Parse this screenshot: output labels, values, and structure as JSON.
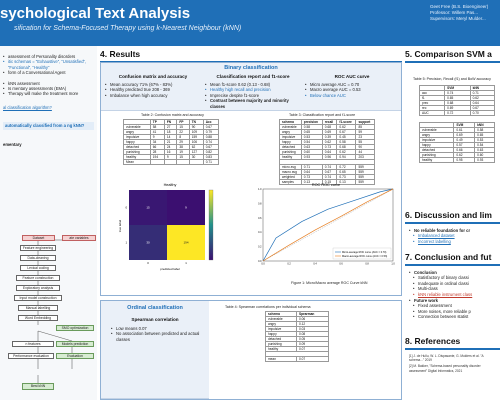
{
  "header": {
    "title": "sychological Text Analysis",
    "subtitle": "sification for Schema-Focused Therapy using k-Nearest Neighbour (kNN)",
    "authors": [
      "Geet Free (B.S. Bioengineer)",
      "Professor: Willem Pas...",
      "Supervisors: Meryl Mulder..."
    ]
  },
  "left": {
    "intro_lines": [
      "assessment of Personality disorders",
      "itic schemas = “Exhaustive”, “Unsatisfied”, “Functional”, “Healthy”",
      "form of a Conversational Agent",
      "kNN assessment",
      "Is mentary assessments (EMA)",
      "Therapy will make the treatment more"
    ],
    "question": "al classification algorithm?",
    "highlight": "automatically classified from a ng kNN?",
    "method_title": "ementary",
    "flow": [
      "Dataset",
      "ate variables",
      "Feature engineering",
      "Data-cleaning",
      "Lexical coding",
      "Feature construction",
      "Exploratory analysis",
      "Input model construction",
      "Manual labelling",
      "Word Embedding",
      "SMO optimization",
      "n features",
      "Models prediction",
      "Performance evaluation",
      "Evaluation",
      "Best kNN"
    ]
  },
  "results": {
    "title": "4. Results",
    "binary": {
      "title": "Binary classification",
      "col1_title": "Confusion matrix and accuracy",
      "col1_items": [
        "Mean accuracy 71% (67% - 83%)",
        "Healthy predicted true 208 - 369",
        "Imbalance when high accuracy"
      ],
      "col2_title": "Classification report and f1-score",
      "col2_items": [
        "Mean f1-score 0.62 (0.13 - 0.68)",
        "Healthy high recall and precision",
        "Imprecise despite f1-score",
        "Contrast between majority and minority classes"
      ],
      "col3_title": "ROC AUC curve",
      "col3_items": [
        "Micro average AUC = 0.70",
        "Macro average AUC = 0.53",
        "Below chance AUC"
      ],
      "table2_caption": "Table 2: Confusion matrix and accuracy",
      "table3_caption": "Table 3: Classification report and f1-score",
      "cm_title": "Healthy",
      "cm_xlabel": "predicted label",
      "cm_ylabel": "true label",
      "roc_title": "ROC ROC curve",
      "fig_caption": "Figure 1: Micro/Macro average ROC Curve kNN"
    },
    "ordinal": {
      "title": "Ordinal classification",
      "subtitle": "Spearman correlation",
      "items": [
        "Low means 0.07",
        "No association between predicted and actual classes"
      ],
      "table_caption": "Table 4: Spearman correlations per individual schema"
    }
  },
  "right": {
    "s5_title": "5. Comparison SVM a",
    "s5_table_caption": "Table 5: Precision, Recall (f1) and BoW accuracy",
    "s6_title": "6. Discussion and lim",
    "s6_items": [
      "No reliable foundation for cr",
      "Imbalanced dataset",
      "Incorrect labelling"
    ],
    "s7_title": "7. Conclusion and fut",
    "s7_items_head": "Conclusion",
    "s7_items": [
      "Satisfactory of binary classi",
      "Inadequate in ordinal classi",
      "Multi-class",
      "kNN reliable instrument class"
    ],
    "s7_future_head": "Future work",
    "s7_future": [
      "Fixed assessment",
      "More noises, more reliable p",
      "Connection between statist"
    ],
    "s8_title": "8. References",
    "refs": [
      "[1] J. de Hullu, W. L. Dispasante, G. Mulders et al. \"A schema...\" 2019",
      "[2] M. Bakker, \"Schema-based personality disorder assessment\" Digital Informatics, 2021"
    ]
  },
  "chart_data": [
    {
      "type": "heatmap",
      "title": "Healthy",
      "xlabel": "predicted label",
      "ylabel": "true label",
      "categories": [
        "0",
        "1"
      ],
      "values": [
        [
          15,
          9
        ],
        [
          30,
          194
        ]
      ]
    },
    {
      "type": "line",
      "title": "ROC ROC curve",
      "xlim": [
        0,
        1
      ],
      "ylim": [
        0,
        1
      ],
      "series": [
        {
          "name": "Micro-average ROC curve (AUC = 0.70)",
          "x": [
            0,
            0.1,
            0.3,
            0.5,
            0.7,
            0.9,
            1.0
          ],
          "y": [
            0,
            0.32,
            0.55,
            0.72,
            0.84,
            0.96,
            1.0
          ]
        },
        {
          "name": "Macro-average ROC curve (AUC = 0.53)",
          "x": [
            0,
            0.2,
            0.4,
            0.6,
            0.8,
            1.0
          ],
          "y": [
            0,
            0.22,
            0.43,
            0.62,
            0.82,
            1.0
          ]
        }
      ]
    }
  ],
  "colors": {
    "header": "#1f6fb7",
    "accent": "#1f6fb7",
    "cm_low": "#3b0f70",
    "cm_high": "#fde725"
  }
}
